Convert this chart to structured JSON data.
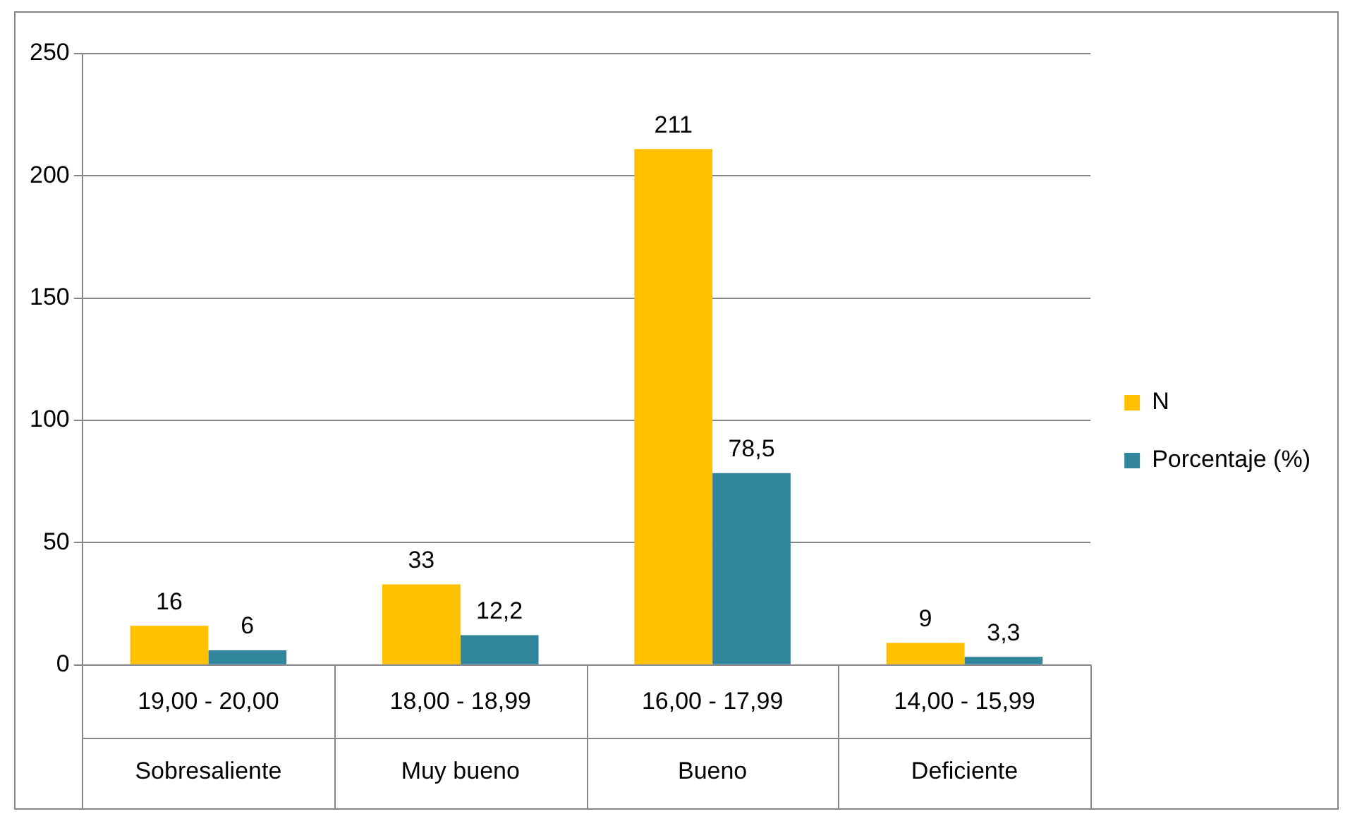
{
  "chart_data": {
    "type": "bar",
    "categories": [
      "19,00 - 20,00\nSobresaliente",
      "18,00 - 18,99\nMuy bueno",
      "16,00 - 17,99\nBueno",
      "14,00 - 15,99\nDeficiente"
    ],
    "series": [
      {
        "name": "N",
        "color": "#ffc000",
        "values": [
          16,
          33,
          211,
          9
        ],
        "value_labels": [
          "16",
          "33",
          "211",
          "9"
        ]
      },
      {
        "name": "Porcentaje (%)",
        "color": "#31859c",
        "values": [
          6,
          12.2,
          78.5,
          3.3
        ],
        "value_labels": [
          "6",
          "12,2",
          "78,5",
          "3,3"
        ]
      }
    ],
    "ylim": [
      0,
      250
    ],
    "yticks": [
      0,
      50,
      100,
      150,
      200,
      250
    ],
    "grid": "y",
    "legend": "right"
  }
}
